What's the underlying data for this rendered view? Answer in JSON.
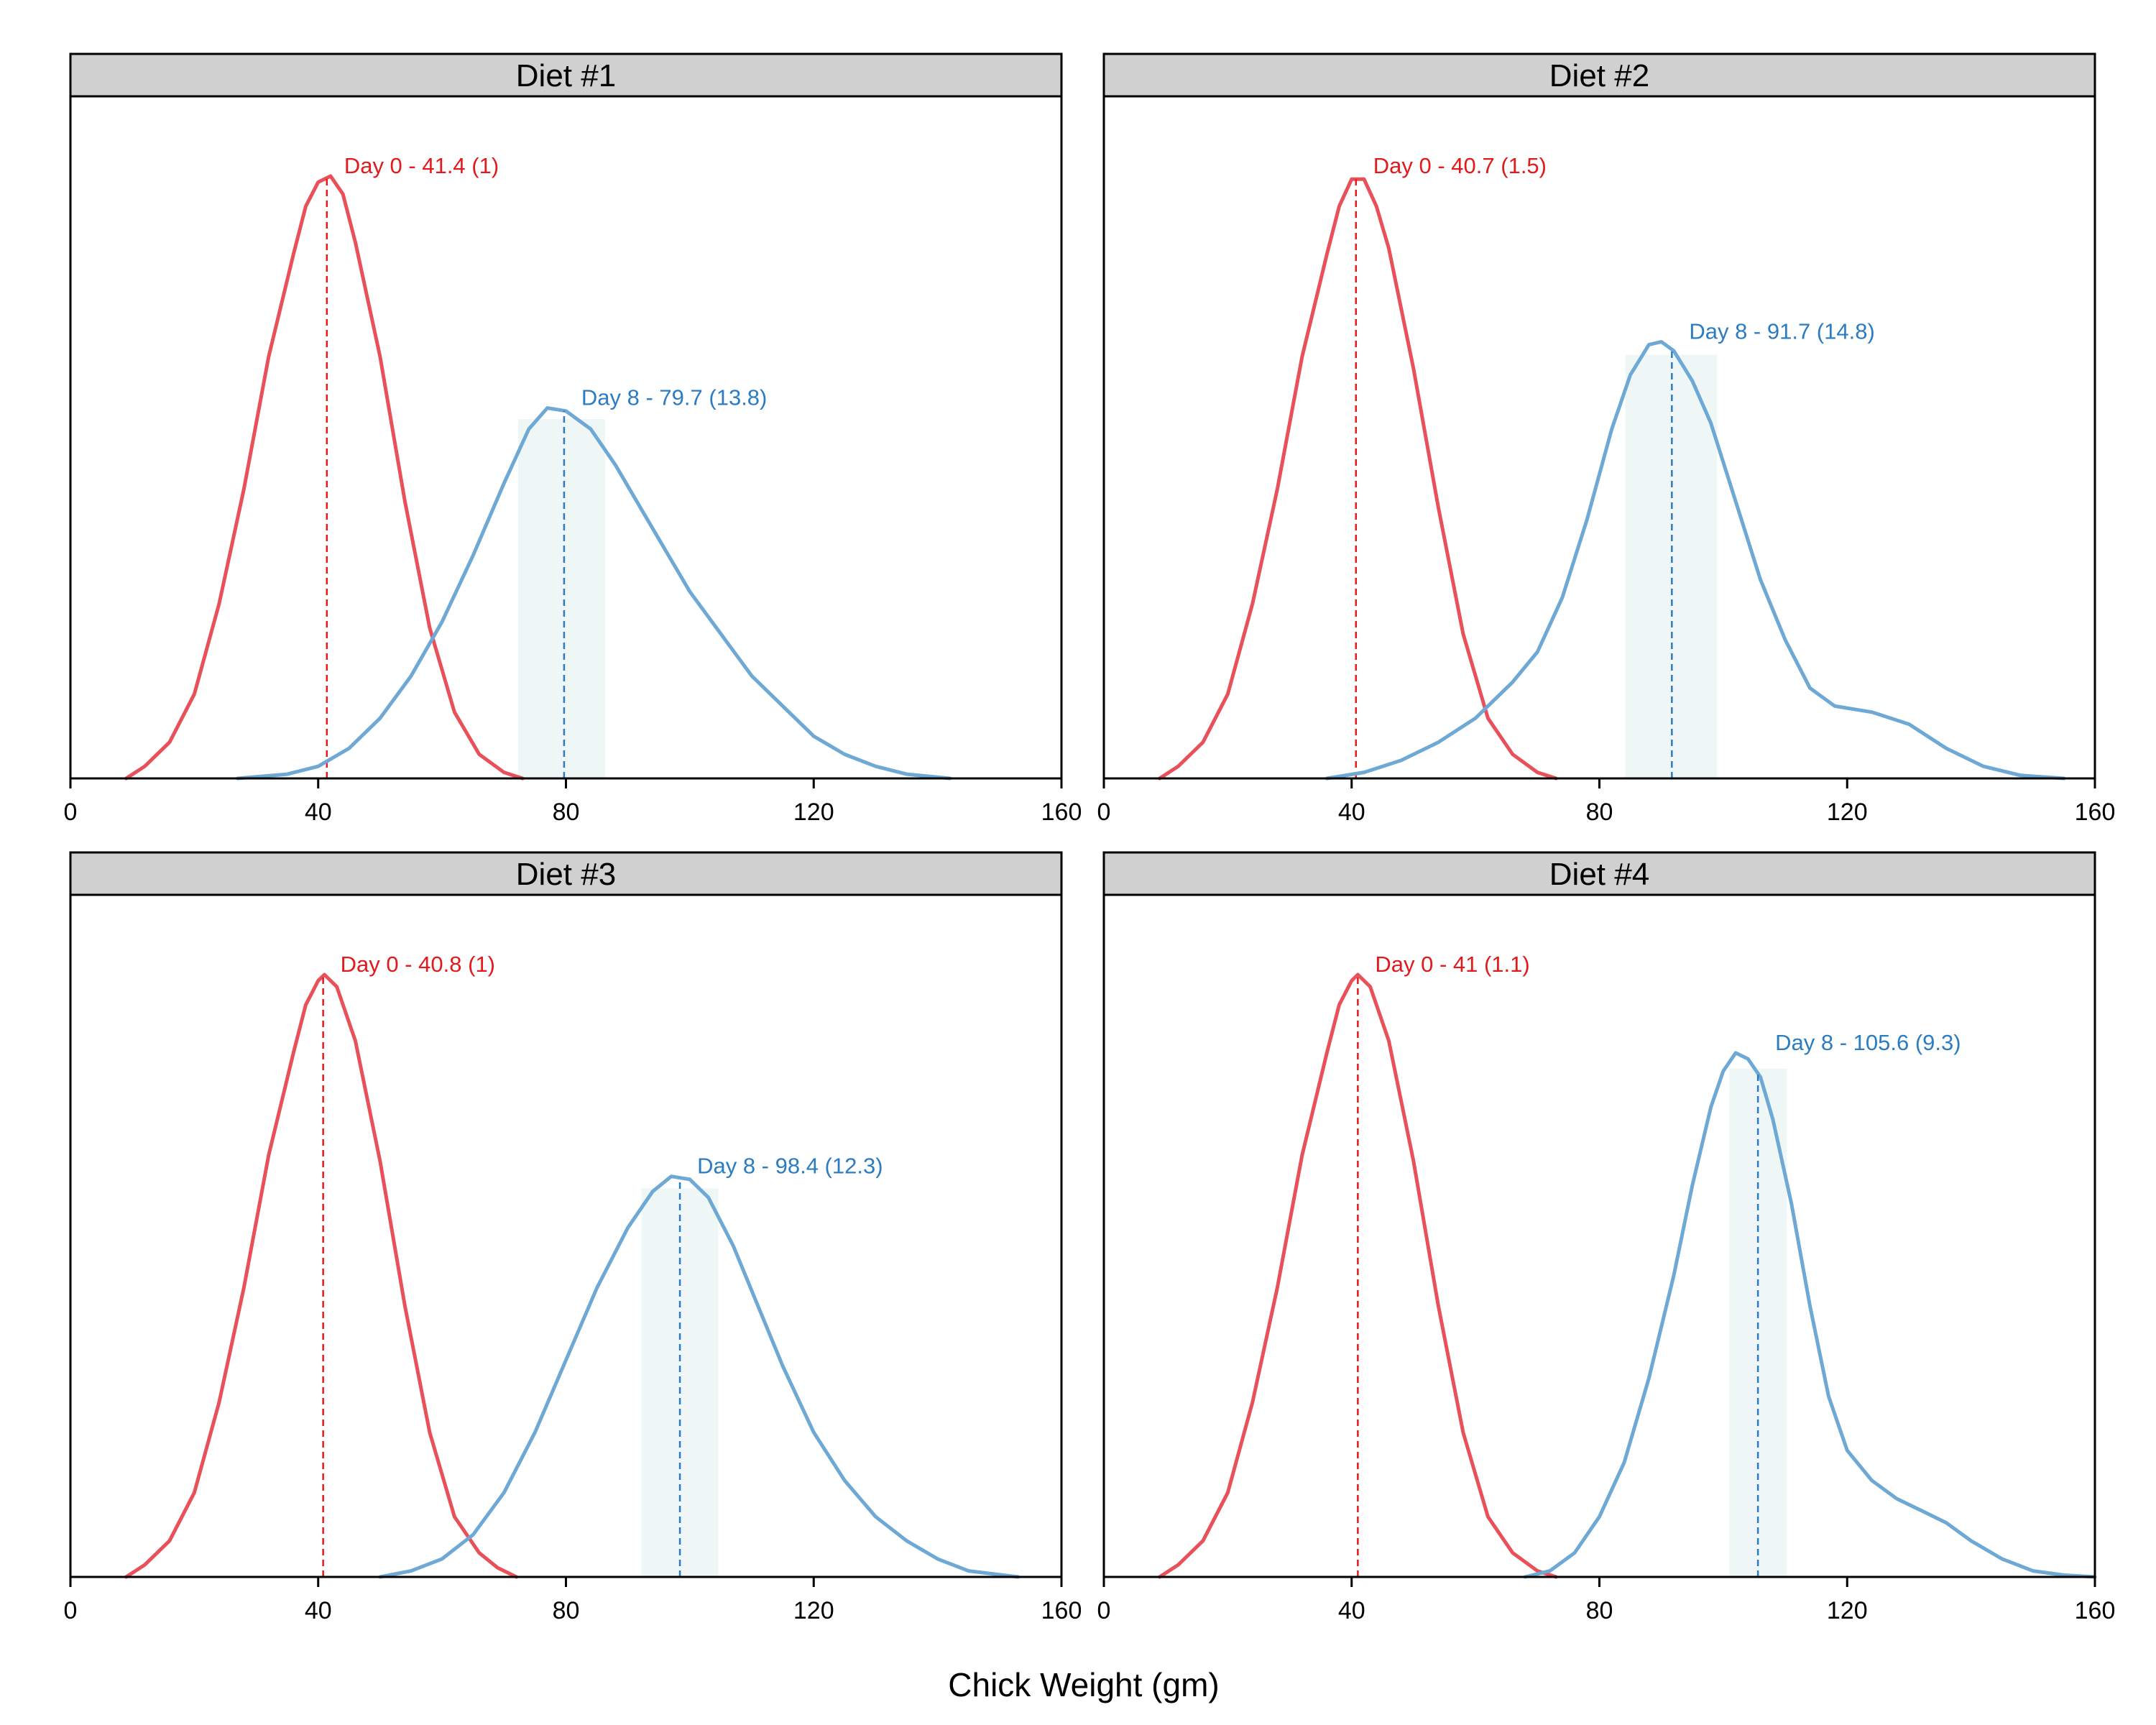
{
  "chart_data": {
    "type": "line",
    "xlabel": "Chick Weight (gm)",
    "ylabel": "",
    "xlim": [
      0,
      160
    ],
    "x_ticks": [
      "0",
      "40",
      "80",
      "120",
      "160"
    ],
    "grid": false,
    "colors": {
      "day0": "#e8515a",
      "day8": "#6ea8d4",
      "day0_label": "#e31a1c",
      "day8_label": "#2b7cc3",
      "band": "#eef6f6",
      "strip": "#d0d0d0"
    },
    "panels": [
      {
        "title": "Diet #1",
        "series": [
          {
            "mean": 41.4,
            "sd": 1,
            "label": "Day 0 - 41.4 (1)",
            "x_range": [
              9,
              73
            ],
            "peak": 1.0,
            "curve": [
              [
                9,
                0.0
              ],
              [
                12,
                0.02
              ],
              [
                16,
                0.06
              ],
              [
                20,
                0.14
              ],
              [
                24,
                0.29
              ],
              [
                28,
                0.48
              ],
              [
                32,
                0.7
              ],
              [
                36,
                0.87
              ],
              [
                38,
                0.95
              ],
              [
                40,
                0.99
              ],
              [
                42,
                1.0
              ],
              [
                44,
                0.97
              ],
              [
                46,
                0.89
              ],
              [
                50,
                0.7
              ],
              [
                54,
                0.46
              ],
              [
                58,
                0.25
              ],
              [
                62,
                0.11
              ],
              [
                66,
                0.04
              ],
              [
                70,
                0.01
              ],
              [
                73,
                0.0
              ]
            ]
          },
          {
            "mean": 79.7,
            "sd": 13.8,
            "label": "Day 8 - 79.7 (13.8)",
            "x_range": [
              27,
              142
            ],
            "peak": 0.615,
            "band": [
              72.3,
              86.3
            ],
            "curve": [
              [
                27,
                0.0
              ],
              [
                35,
                0.007
              ],
              [
                40,
                0.02
              ],
              [
                45,
                0.05
              ],
              [
                50,
                0.1
              ],
              [
                55,
                0.17
              ],
              [
                60,
                0.26
              ],
              [
                65,
                0.37
              ],
              [
                70,
                0.49
              ],
              [
                74,
                0.58
              ],
              [
                77,
                0.615
              ],
              [
                80,
                0.61
              ],
              [
                84,
                0.58
              ],
              [
                88,
                0.52
              ],
              [
                92,
                0.45
              ],
              [
                96,
                0.38
              ],
              [
                100,
                0.31
              ],
              [
                105,
                0.24
              ],
              [
                110,
                0.17
              ],
              [
                115,
                0.12
              ],
              [
                120,
                0.07
              ],
              [
                125,
                0.04
              ],
              [
                130,
                0.02
              ],
              [
                135,
                0.007
              ],
              [
                142,
                0.0
              ]
            ]
          }
        ]
      },
      {
        "title": "Diet #2",
        "series": [
          {
            "mean": 40.7,
            "sd": 1.5,
            "label": "Day 0 - 40.7 (1.5)",
            "x_range": [
              9,
              73
            ],
            "peak": 1.0,
            "curve": [
              [
                9,
                0.0
              ],
              [
                12,
                0.02
              ],
              [
                16,
                0.06
              ],
              [
                20,
                0.14
              ],
              [
                24,
                0.29
              ],
              [
                28,
                0.48
              ],
              [
                32,
                0.7
              ],
              [
                36,
                0.87
              ],
              [
                38,
                0.95
              ],
              [
                40,
                0.995
              ],
              [
                42,
                0.995
              ],
              [
                44,
                0.95
              ],
              [
                46,
                0.88
              ],
              [
                50,
                0.68
              ],
              [
                54,
                0.45
              ],
              [
                58,
                0.24
              ],
              [
                62,
                0.1
              ],
              [
                66,
                0.04
              ],
              [
                70,
                0.01
              ],
              [
                73,
                0.0
              ]
            ]
          },
          {
            "mean": 91.7,
            "sd": 14.8,
            "label": "Day 8 - 91.7 (14.8)",
            "x_range": [
              36,
              155
            ],
            "peak": 0.725,
            "band": [
              84.2,
              99.0
            ],
            "curve": [
              [
                36,
                0.0
              ],
              [
                42,
                0.01
              ],
              [
                48,
                0.03
              ],
              [
                54,
                0.06
              ],
              [
                60,
                0.1
              ],
              [
                66,
                0.16
              ],
              [
                70,
                0.21
              ],
              [
                74,
                0.3
              ],
              [
                78,
                0.43
              ],
              [
                82,
                0.58
              ],
              [
                85,
                0.67
              ],
              [
                88,
                0.72
              ],
              [
                90,
                0.725
              ],
              [
                92,
                0.71
              ],
              [
                95,
                0.66
              ],
              [
                98,
                0.59
              ],
              [
                102,
                0.46
              ],
              [
                106,
                0.33
              ],
              [
                110,
                0.23
              ],
              [
                114,
                0.15
              ],
              [
                118,
                0.12
              ],
              [
                124,
                0.11
              ],
              [
                130,
                0.09
              ],
              [
                136,
                0.05
              ],
              [
                142,
                0.02
              ],
              [
                148,
                0.005
              ],
              [
                155,
                0.0
              ]
            ]
          }
        ]
      },
      {
        "title": "Diet #3",
        "series": [
          {
            "mean": 40.8,
            "sd": 1,
            "label": "Day 0 - 40.8 (1)",
            "x_range": [
              9,
              72
            ],
            "peak": 1.0,
            "curve": [
              [
                9,
                0.0
              ],
              [
                12,
                0.02
              ],
              [
                16,
                0.06
              ],
              [
                20,
                0.14
              ],
              [
                24,
                0.29
              ],
              [
                28,
                0.48
              ],
              [
                32,
                0.7
              ],
              [
                36,
                0.87
              ],
              [
                38,
                0.95
              ],
              [
                40,
                0.99
              ],
              [
                41,
                1.0
              ],
              [
                43,
                0.98
              ],
              [
                46,
                0.89
              ],
              [
                50,
                0.69
              ],
              [
                54,
                0.45
              ],
              [
                58,
                0.24
              ],
              [
                62,
                0.1
              ],
              [
                66,
                0.04
              ],
              [
                69,
                0.015
              ],
              [
                72,
                0.0
              ]
            ]
          },
          {
            "mean": 98.4,
            "sd": 12.3,
            "label": "Day 8 - 98.4 (12.3)",
            "x_range": [
              50,
              153
            ],
            "peak": 0.665,
            "band": [
              92.2,
              104.6
            ],
            "curve": [
              [
                50,
                0.0
              ],
              [
                55,
                0.01
              ],
              [
                60,
                0.03
              ],
              [
                65,
                0.07
              ],
              [
                70,
                0.14
              ],
              [
                75,
                0.24
              ],
              [
                80,
                0.36
              ],
              [
                85,
                0.48
              ],
              [
                90,
                0.58
              ],
              [
                94,
                0.64
              ],
              [
                97,
                0.665
              ],
              [
                100,
                0.66
              ],
              [
                103,
                0.63
              ],
              [
                107,
                0.55
              ],
              [
                111,
                0.45
              ],
              [
                115,
                0.35
              ],
              [
                120,
                0.24
              ],
              [
                125,
                0.16
              ],
              [
                130,
                0.1
              ],
              [
                135,
                0.06
              ],
              [
                140,
                0.03
              ],
              [
                145,
                0.01
              ],
              [
                153,
                0.0
              ]
            ]
          }
        ]
      },
      {
        "title": "Diet #4",
        "series": [
          {
            "mean": 41,
            "sd": 1.1,
            "label": "Day 0 - 41 (1.1)",
            "x_range": [
              9,
              73
            ],
            "peak": 1.0,
            "curve": [
              [
                9,
                0.0
              ],
              [
                12,
                0.02
              ],
              [
                16,
                0.06
              ],
              [
                20,
                0.14
              ],
              [
                24,
                0.29
              ],
              [
                28,
                0.48
              ],
              [
                32,
                0.7
              ],
              [
                36,
                0.87
              ],
              [
                38,
                0.95
              ],
              [
                40,
                0.99
              ],
              [
                41,
                1.0
              ],
              [
                43,
                0.98
              ],
              [
                46,
                0.89
              ],
              [
                50,
                0.69
              ],
              [
                54,
                0.45
              ],
              [
                58,
                0.24
              ],
              [
                62,
                0.1
              ],
              [
                66,
                0.04
              ],
              [
                70,
                0.01
              ],
              [
                73,
                0.0
              ]
            ]
          },
          {
            "mean": 105.6,
            "sd": 9.3,
            "label": "Day 8 - 105.6 (9.3)",
            "x_range": [
              68,
              160
            ],
            "peak": 0.87,
            "band": [
              101.0,
              110.3
            ],
            "curve": [
              [
                68,
                0.0
              ],
              [
                72,
                0.01
              ],
              [
                76,
                0.04
              ],
              [
                80,
                0.1
              ],
              [
                84,
                0.19
              ],
              [
                88,
                0.33
              ],
              [
                92,
                0.5
              ],
              [
                95,
                0.65
              ],
              [
                98,
                0.78
              ],
              [
                100,
                0.84
              ],
              [
                102,
                0.87
              ],
              [
                104,
                0.86
              ],
              [
                106,
                0.83
              ],
              [
                108,
                0.76
              ],
              [
                111,
                0.62
              ],
              [
                114,
                0.45
              ],
              [
                117,
                0.3
              ],
              [
                120,
                0.21
              ],
              [
                124,
                0.16
              ],
              [
                128,
                0.13
              ],
              [
                132,
                0.11
              ],
              [
                136,
                0.09
              ],
              [
                140,
                0.06
              ],
              [
                145,
                0.03
              ],
              [
                150,
                0.01
              ],
              [
                155,
                0.003
              ],
              [
                160,
                0.0
              ]
            ]
          }
        ]
      }
    ]
  }
}
